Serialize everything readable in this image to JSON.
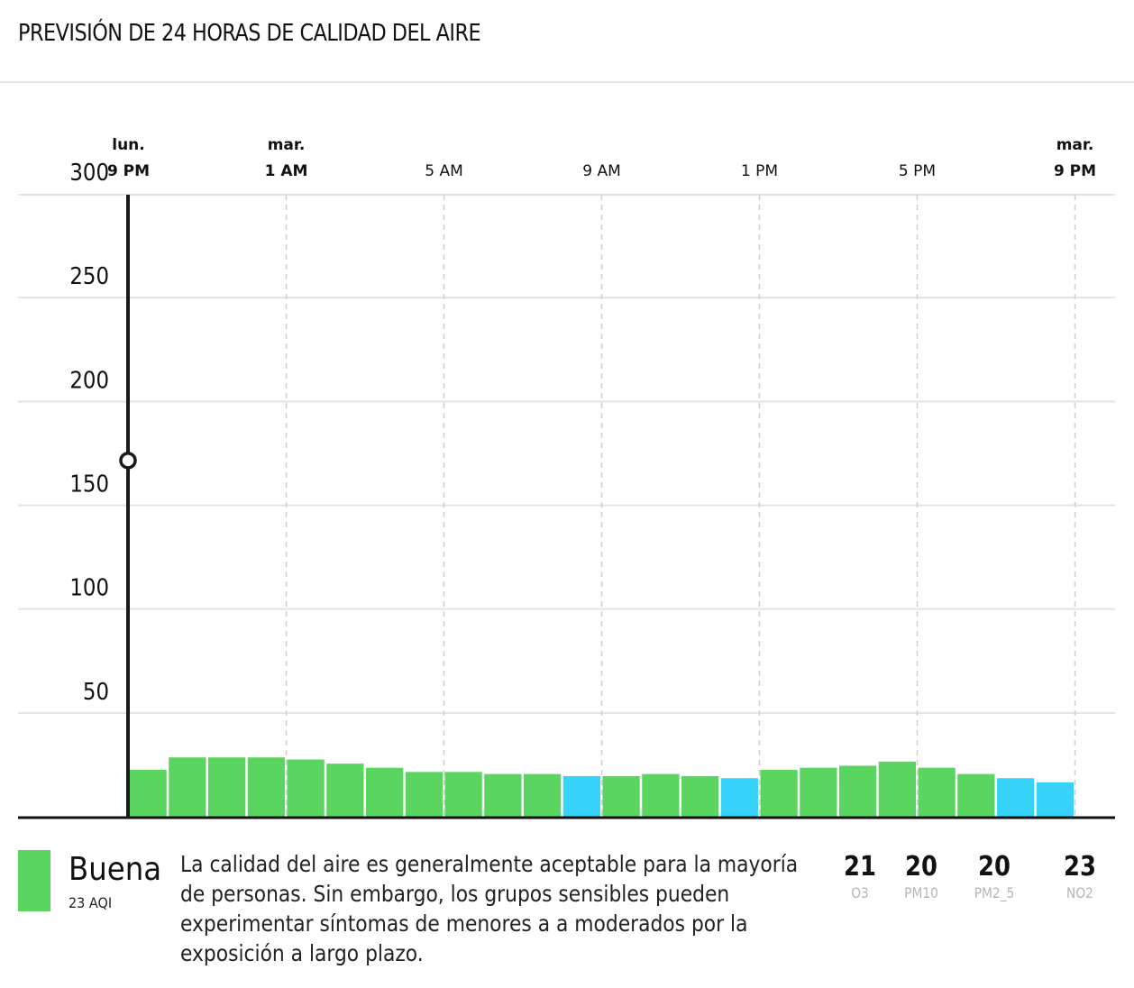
{
  "header": {
    "title": "PREVISIÓN DE 24 HORAS DE CALIDAD DEL AIRE"
  },
  "colors": {
    "good": "#5ad55f",
    "low": "#36d2fa",
    "grid": "#e3e3e3",
    "axis": "#111111"
  },
  "chart_data": {
    "type": "bar",
    "ylim": [
      0,
      300
    ],
    "yticks": [
      50,
      100,
      150,
      200,
      250,
      300
    ],
    "xticks": [
      {
        "index": 0,
        "day": "lun.",
        "time": "9 PM",
        "bold": true
      },
      {
        "index": 4,
        "day": "mar.",
        "time": "1 AM",
        "bold": true
      },
      {
        "index": 8,
        "day": "",
        "time": "5 AM",
        "bold": false
      },
      {
        "index": 12,
        "day": "",
        "time": "9 AM",
        "bold": false
      },
      {
        "index": 16,
        "day": "",
        "time": "1 PM",
        "bold": false
      },
      {
        "index": 20,
        "day": "",
        "time": "5 PM",
        "bold": false
      },
      {
        "index": 24,
        "day": "mar.",
        "time": "9 PM",
        "bold": true
      }
    ],
    "values": [
      23,
      29,
      29,
      29,
      28,
      26,
      24,
      22,
      22,
      21,
      21,
      20,
      20,
      21,
      20,
      19,
      23,
      24,
      25,
      27,
      24,
      21,
      19,
      17
    ],
    "color_levels": [
      "good",
      "good",
      "good",
      "good",
      "good",
      "good",
      "good",
      "good",
      "good",
      "good",
      "good",
      "low",
      "good",
      "good",
      "good",
      "low",
      "good",
      "good",
      "good",
      "good",
      "good",
      "good",
      "low",
      "low"
    ],
    "marker_value": 172
  },
  "summary": {
    "status": "Buena",
    "aqi_label": "23 AQI",
    "description": "La calidad del aire es generalmente aceptable para la mayoría de personas. Sin embargo, los grupos sensibles pueden experimentar síntomas de menores a a moderados por la exposición a largo plazo."
  },
  "pollutants": [
    {
      "value": "21",
      "name": "O3"
    },
    {
      "value": "20",
      "name": "PM10"
    },
    {
      "value": "20",
      "name": "PM2_5"
    },
    {
      "value": "23",
      "name": "NO2"
    }
  ]
}
